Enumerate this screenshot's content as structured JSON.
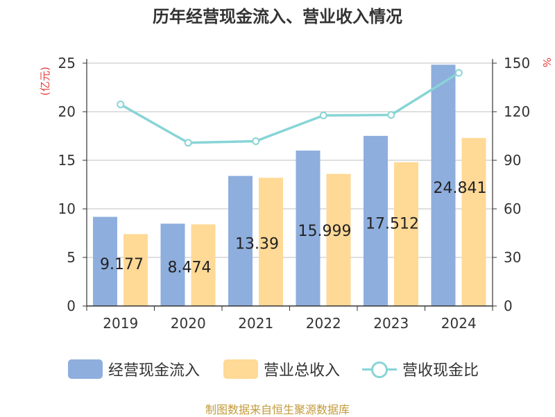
{
  "title": "历年经营现金流入、营业收入情况",
  "footer": "制图数据来自恒生聚源数据库",
  "colors": {
    "inflow": "#8eaedd",
    "revenue": "#ffd996",
    "ratio": "#88d4d6",
    "unit_left": "#e83a3a",
    "unit_right": "#e83a3a"
  },
  "chart_data": {
    "type": "bar",
    "title": "历年经营现金流入、营业收入情况",
    "categories": [
      "2019",
      "2020",
      "2021",
      "2022",
      "2023",
      "2024"
    ],
    "ylabel_left": "(亿元)",
    "ylabel_right": "%",
    "ylim_left": [
      0,
      25
    ],
    "yticks_left": [
      "0",
      "5",
      "10",
      "15",
      "20",
      "25"
    ],
    "ylim_right": [
      0,
      150
    ],
    "yticks_right": [
      "0",
      "30",
      "60",
      "90",
      "120",
      "150"
    ],
    "grid": true,
    "legend_position": "bottom",
    "series": [
      {
        "name": "经营现金流入",
        "type": "bar",
        "axis": "left",
        "values": [
          9.177,
          8.474,
          13.39,
          15.999,
          17.512,
          24.841
        ],
        "labels": [
          "9.177",
          "8.474",
          "13.39",
          "15.999",
          "17.512",
          "24.841"
        ]
      },
      {
        "name": "营业总收入",
        "type": "bar",
        "axis": "left",
        "values": [
          7.4,
          8.4,
          13.2,
          13.6,
          14.8,
          17.3
        ]
      },
      {
        "name": "营收现金比",
        "type": "line",
        "axis": "right",
        "values": [
          124.5,
          100.8,
          101.8,
          117.7,
          118.0,
          144.0
        ]
      }
    ]
  }
}
